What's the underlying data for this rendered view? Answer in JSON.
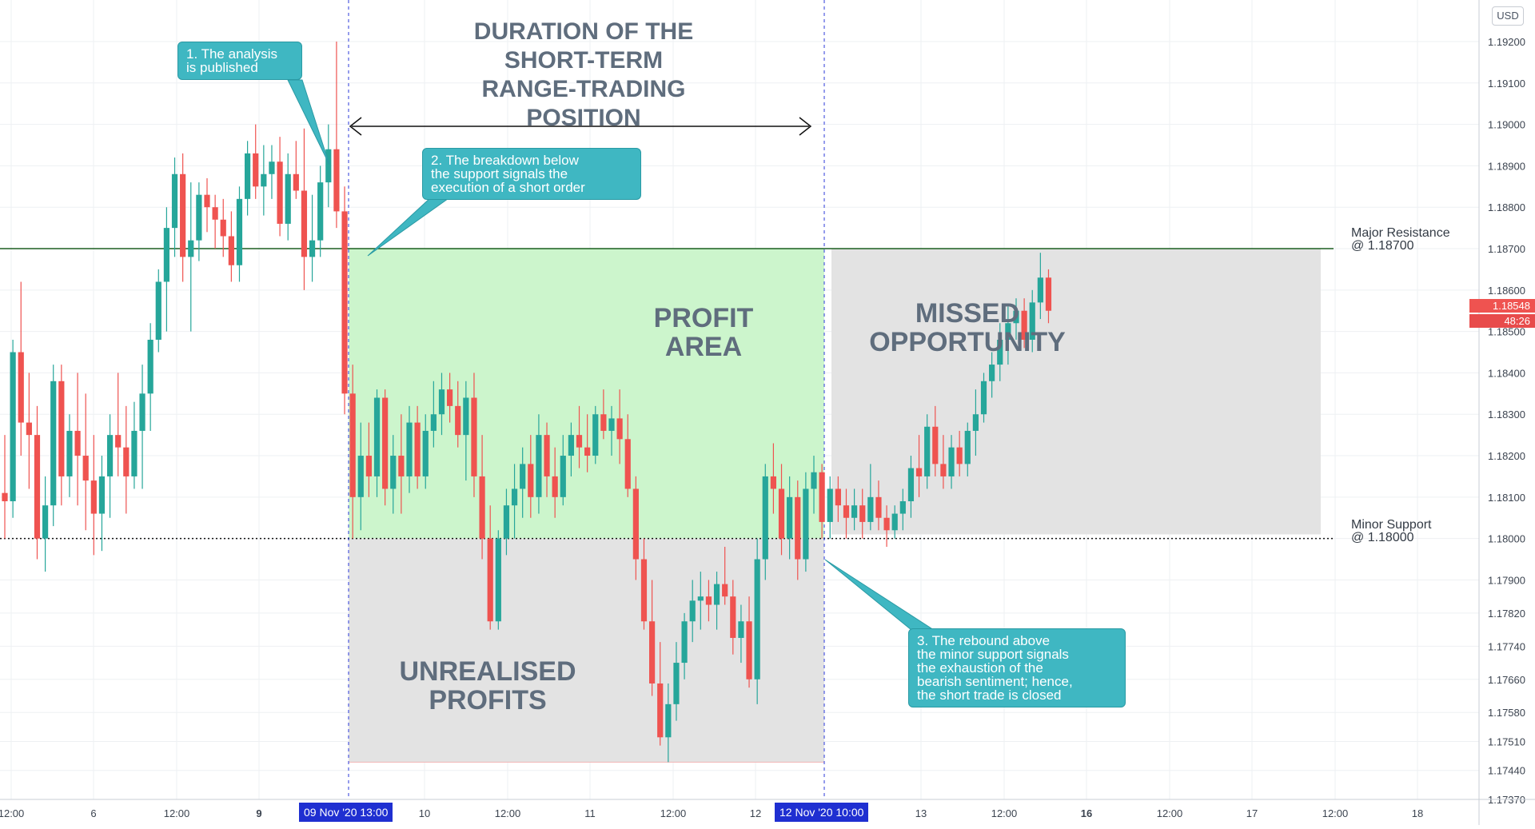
{
  "chart_data": {
    "type": "candlestick",
    "currency": "USD",
    "y_ticks": [
      "1.19200",
      "1.19100",
      "1.19000",
      "1.18900",
      "1.18800",
      "1.18700",
      "1.18600",
      "1.18500",
      "1.18400",
      "1.18300",
      "1.18200",
      "1.18100",
      "1.18000",
      "1.17900",
      "1.17820",
      "1.17740",
      "1.17660",
      "1.17580",
      "1.17510",
      "1.17440",
      "1.17370"
    ],
    "x_ticks": [
      "12:00",
      "6",
      "12:00",
      "9",
      "10",
      "12:00",
      "11",
      "12:00",
      "12",
      "13",
      "12:00",
      "16",
      "12:00",
      "17",
      "12:00",
      "18"
    ],
    "x_tick_bold": [
      false,
      false,
      false,
      true,
      false,
      false,
      false,
      false,
      false,
      false,
      false,
      true,
      false,
      false,
      false,
      false
    ],
    "time_markers": [
      "09 Nov '20   13:00",
      "12 Nov '20   10:00"
    ],
    "levels": [
      {
        "name": "Major Resistance",
        "value": 1.187,
        "label": "Major Resistance\n@ 1.18700",
        "color": "#1b5e20",
        "style": "solid"
      },
      {
        "name": "Minor Support",
        "value": 1.18,
        "label": "Minor Support\n@ 1.18000",
        "color": "#111111",
        "style": "dotted"
      }
    ],
    "zones": [
      {
        "name": "profit-area",
        "y_top": 1.187,
        "y_bottom": 1.18,
        "color": "#ccf5cc",
        "label": "PROFIT\nAREA"
      },
      {
        "name": "unrealised-profits",
        "y_top": 1.18,
        "y_bottom": 1.1746,
        "color": "#e3e3e3",
        "label": "UNREALISED\nPROFITS"
      },
      {
        "name": "missed-opportunity",
        "y_top": 1.187,
        "y_bottom": 1.1801,
        "color": "#e3e3e3",
        "label": "MISSED\nOPPORTUNITY"
      }
    ],
    "current_price": "1.18548",
    "countdown": "48:26",
    "duration_title": "DURATION OF THE\nSHORT-TERM\nRANGE-TRADING\nPOSITION",
    "annotations": [
      "1. The analysis\nis published",
      "2. The breakdown below\nthe support signals the\nexecution of a short order",
      "3. The rebound above\nthe minor support signals\nthe exhaustion of the\nbearish sentiment; hence,\nthe short trade is closed"
    ],
    "candles": [
      [
        1.1811,
        1.1825,
        1.18,
        1.1809
      ],
      [
        1.1809,
        1.1848,
        1.1805,
        1.1845
      ],
      [
        1.1845,
        1.1862,
        1.182,
        1.1828
      ],
      [
        1.1828,
        1.184,
        1.1812,
        1.1825
      ],
      [
        1.1825,
        1.1832,
        1.1795,
        1.18
      ],
      [
        1.18,
        1.1815,
        1.1792,
        1.1808
      ],
      [
        1.1808,
        1.1842,
        1.1803,
        1.1838
      ],
      [
        1.1838,
        1.1842,
        1.1808,
        1.1815
      ],
      [
        1.1815,
        1.183,
        1.181,
        1.1826
      ],
      [
        1.1826,
        1.184,
        1.1808,
        1.182
      ],
      [
        1.182,
        1.1835,
        1.1802,
        1.1814
      ],
      [
        1.1814,
        1.1825,
        1.1796,
        1.1806
      ],
      [
        1.1806,
        1.182,
        1.1797,
        1.1815
      ],
      [
        1.1815,
        1.183,
        1.1805,
        1.1825
      ],
      [
        1.1825,
        1.184,
        1.1815,
        1.1822
      ],
      [
        1.1822,
        1.1832,
        1.1806,
        1.1815
      ],
      [
        1.1815,
        1.1833,
        1.1812,
        1.1826
      ],
      [
        1.1826,
        1.1842,
        1.1812,
        1.1835
      ],
      [
        1.1835,
        1.1852,
        1.1826,
        1.1848
      ],
      [
        1.1848,
        1.1865,
        1.1845,
        1.1862
      ],
      [
        1.1862,
        1.188,
        1.185,
        1.1875
      ],
      [
        1.1875,
        1.1892,
        1.1868,
        1.1888
      ],
      [
        1.1888,
        1.1893,
        1.1862,
        1.1868
      ],
      [
        1.1868,
        1.1886,
        1.185,
        1.1872
      ],
      [
        1.1872,
        1.1886,
        1.1867,
        1.1883
      ],
      [
        1.1883,
        1.1887,
        1.1874,
        1.188
      ],
      [
        1.188,
        1.1883,
        1.187,
        1.1877
      ],
      [
        1.1877,
        1.1882,
        1.1868,
        1.1873
      ],
      [
        1.1873,
        1.1879,
        1.1862,
        1.1866
      ],
      [
        1.1866,
        1.1885,
        1.1862,
        1.1882
      ],
      [
        1.1882,
        1.1896,
        1.1878,
        1.1893
      ],
      [
        1.1893,
        1.19,
        1.1882,
        1.1885
      ],
      [
        1.1885,
        1.1895,
        1.1878,
        1.1888
      ],
      [
        1.1888,
        1.1895,
        1.1882,
        1.1891
      ],
      [
        1.1891,
        1.1897,
        1.1873,
        1.1876
      ],
      [
        1.1876,
        1.1893,
        1.1872,
        1.1888
      ],
      [
        1.1888,
        1.1896,
        1.1882,
        1.1884
      ],
      [
        1.1884,
        1.1899,
        1.186,
        1.1868
      ],
      [
        1.1868,
        1.1883,
        1.1862,
        1.1872
      ],
      [
        1.1872,
        1.189,
        1.1868,
        1.1886
      ],
      [
        1.1886,
        1.19,
        1.188,
        1.1894
      ],
      [
        1.1894,
        1.192,
        1.1875,
        1.1879
      ],
      [
        1.1879,
        1.1885,
        1.183,
        1.1835
      ],
      [
        1.1835,
        1.1842,
        1.18,
        1.181
      ],
      [
        1.181,
        1.1828,
        1.1802,
        1.182
      ],
      [
        1.182,
        1.1828,
        1.181,
        1.1815
      ],
      [
        1.1815,
        1.1836,
        1.181,
        1.1834
      ],
      [
        1.1834,
        1.1836,
        1.1808,
        1.1812
      ],
      [
        1.1812,
        1.1825,
        1.1806,
        1.182
      ],
      [
        1.182,
        1.183,
        1.1806,
        1.1815
      ],
      [
        1.1815,
        1.1832,
        1.1811,
        1.1828
      ],
      [
        1.1828,
        1.1832,
        1.1812,
        1.1815
      ],
      [
        1.1815,
        1.183,
        1.1812,
        1.1826
      ],
      [
        1.1826,
        1.1838,
        1.1822,
        1.183
      ],
      [
        1.183,
        1.184,
        1.1825,
        1.1836
      ],
      [
        1.1836,
        1.184,
        1.1828,
        1.1832
      ],
      [
        1.1832,
        1.1838,
        1.1822,
        1.1825
      ],
      [
        1.1825,
        1.1838,
        1.1814,
        1.1834
      ],
      [
        1.1834,
        1.184,
        1.181,
        1.1815
      ],
      [
        1.1815,
        1.1825,
        1.1795,
        1.18
      ],
      [
        1.18,
        1.1808,
        1.1778,
        1.178
      ],
      [
        1.178,
        1.1802,
        1.1778,
        1.18
      ],
      [
        1.18,
        1.1812,
        1.1796,
        1.1808
      ],
      [
        1.1808,
        1.1818,
        1.18,
        1.1812
      ],
      [
        1.1812,
        1.1822,
        1.1805,
        1.1818
      ],
      [
        1.1818,
        1.1825,
        1.1805,
        1.181
      ],
      [
        1.181,
        1.183,
        1.1806,
        1.1825
      ],
      [
        1.1825,
        1.1828,
        1.181,
        1.1815
      ],
      [
        1.1815,
        1.1822,
        1.1805,
        1.181
      ],
      [
        1.181,
        1.1825,
        1.1808,
        1.182
      ],
      [
        1.182,
        1.1828,
        1.1815,
        1.1825
      ],
      [
        1.1825,
        1.1832,
        1.1817,
        1.1822
      ],
      [
        1.1822,
        1.183,
        1.1816,
        1.182
      ],
      [
        1.182,
        1.1832,
        1.1818,
        1.183
      ],
      [
        1.183,
        1.1836,
        1.1824,
        1.1826
      ],
      [
        1.1826,
        1.1832,
        1.182,
        1.1829
      ],
      [
        1.1829,
        1.1836,
        1.1818,
        1.1824
      ],
      [
        1.1824,
        1.183,
        1.181,
        1.1812
      ],
      [
        1.1812,
        1.1815,
        1.179,
        1.1795
      ],
      [
        1.1795,
        1.18,
        1.1778,
        1.178
      ],
      [
        1.178,
        1.179,
        1.1762,
        1.1765
      ],
      [
        1.1765,
        1.1775,
        1.175,
        1.1752
      ],
      [
        1.1752,
        1.1765,
        1.1746,
        1.176
      ],
      [
        1.176,
        1.1775,
        1.1756,
        1.177
      ],
      [
        1.177,
        1.1782,
        1.1766,
        1.178
      ],
      [
        1.178,
        1.179,
        1.1775,
        1.1785
      ],
      [
        1.1785,
        1.1792,
        1.1778,
        1.1786
      ],
      [
        1.1786,
        1.179,
        1.178,
        1.1784
      ],
      [
        1.1784,
        1.1792,
        1.1778,
        1.1789
      ],
      [
        1.1789,
        1.1798,
        1.1784,
        1.1786
      ],
      [
        1.1786,
        1.179,
        1.1772,
        1.1776
      ],
      [
        1.1776,
        1.1784,
        1.177,
        1.178
      ],
      [
        1.178,
        1.1786,
        1.1764,
        1.1766
      ],
      [
        1.1766,
        1.18,
        1.176,
        1.1795
      ],
      [
        1.1795,
        1.1818,
        1.179,
        1.1815
      ],
      [
        1.1815,
        1.1823,
        1.1806,
        1.1812
      ],
      [
        1.1812,
        1.1818,
        1.1796,
        1.18
      ],
      [
        1.18,
        1.1815,
        1.1795,
        1.181
      ],
      [
        1.181,
        1.1814,
        1.179,
        1.1795
      ],
      [
        1.1795,
        1.1816,
        1.1792,
        1.1812
      ],
      [
        1.1812,
        1.182,
        1.1806,
        1.1816
      ],
      [
        1.1816,
        1.1818,
        1.18,
        1.1804
      ],
      [
        1.1804,
        1.1815,
        1.18,
        1.1812
      ],
      [
        1.1812,
        1.1815,
        1.1804,
        1.1808
      ],
      [
        1.1808,
        1.1812,
        1.18,
        1.1805
      ],
      [
        1.1805,
        1.1812,
        1.1802,
        1.1808
      ],
      [
        1.1808,
        1.1812,
        1.18,
        1.1804
      ],
      [
        1.1804,
        1.1818,
        1.1802,
        1.181
      ],
      [
        1.181,
        1.1814,
        1.1802,
        1.1805
      ],
      [
        1.1805,
        1.1808,
        1.1798,
        1.1802
      ],
      [
        1.1802,
        1.1808,
        1.18,
        1.1806
      ],
      [
        1.1806,
        1.1812,
        1.1802,
        1.1809
      ],
      [
        1.1809,
        1.182,
        1.1805,
        1.1817
      ],
      [
        1.1817,
        1.1825,
        1.181,
        1.1815
      ],
      [
        1.1815,
        1.183,
        1.1812,
        1.1827
      ],
      [
        1.1827,
        1.1832,
        1.1815,
        1.1818
      ],
      [
        1.1818,
        1.1825,
        1.1812,
        1.1815
      ],
      [
        1.1815,
        1.1825,
        1.1812,
        1.1822
      ],
      [
        1.1822,
        1.1826,
        1.1815,
        1.1818
      ],
      [
        1.1818,
        1.1828,
        1.1815,
        1.1826
      ],
      [
        1.1826,
        1.1836,
        1.182,
        1.183
      ],
      [
        1.183,
        1.184,
        1.1828,
        1.1838
      ],
      [
        1.1838,
        1.1845,
        1.1834,
        1.1842
      ],
      [
        1.1842,
        1.1852,
        1.1838,
        1.1848
      ],
      [
        1.1848,
        1.1856,
        1.1842,
        1.1852
      ],
      [
        1.1852,
        1.1858,
        1.1848,
        1.1855
      ],
      [
        1.1855,
        1.1858,
        1.1846,
        1.1848
      ],
      [
        1.1848,
        1.186,
        1.1845,
        1.1857
      ],
      [
        1.1857,
        1.1869,
        1.1853,
        1.1863
      ],
      [
        1.1863,
        1.1865,
        1.1852,
        1.1855
      ]
    ],
    "xlim": [
      0,
      159
    ],
    "ylim": [
      1.17355,
      1.19235
    ]
  }
}
